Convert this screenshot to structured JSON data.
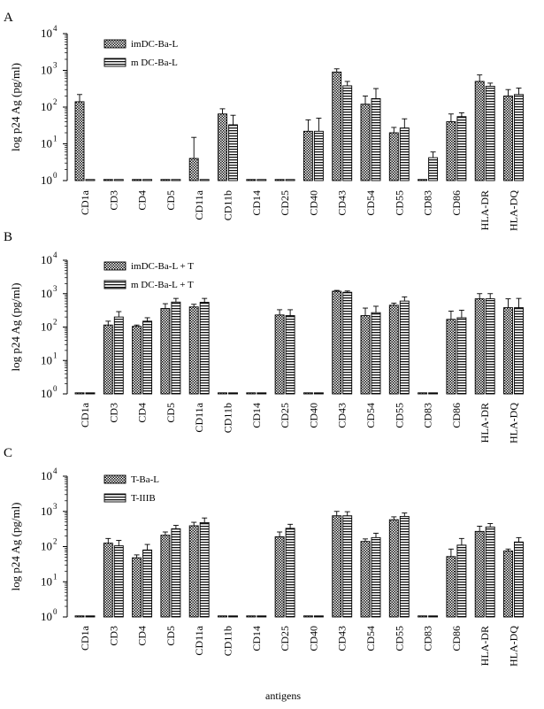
{
  "figure": {
    "xlabel": "antigens",
    "ylabel": "log p24 Ag (pg/ml)"
  },
  "chart_data": [
    {
      "type": "bar",
      "panel_label": "A",
      "yscale": "log",
      "ylim": [
        1,
        10000
      ],
      "ytick_labels": [
        "10",
        "10",
        "10",
        "10",
        "10"
      ],
      "ytick_exponents": [
        "0",
        "1",
        "2",
        "3",
        "4"
      ],
      "ylabel": "log p24 Ag (pg/ml)",
      "legend_position": "top-left",
      "categories": [
        "CD1a",
        "CD3",
        "CD4",
        "CD5",
        "CD11a",
        "CD11b",
        "CD14",
        "CD25",
        "CD40",
        "CD43",
        "CD54",
        "CD55",
        "CD83",
        "CD86",
        "HLA-DR",
        "HLA-DQ"
      ],
      "series": [
        {
          "name": "imDC-Ba-L",
          "pattern": "checker",
          "values": [
            140,
            1,
            1,
            1,
            4,
            65,
            1,
            1,
            22,
            900,
            120,
            20,
            1,
            40,
            500,
            200
          ],
          "errors": [
            220,
            1,
            1,
            1,
            15,
            90,
            1,
            1,
            45,
            1100,
            200,
            28,
            1,
            65,
            750,
            300
          ]
        },
        {
          "name": "m DC-Ba-L",
          "pattern": "stripes",
          "values": [
            1,
            1,
            1,
            1,
            1,
            33,
            1,
            1,
            22,
            380,
            170,
            27,
            4.2,
            55,
            370,
            220
          ],
          "errors": [
            1,
            1,
            1,
            1,
            1,
            60,
            1,
            1,
            50,
            500,
            320,
            48,
            6,
            70,
            450,
            330
          ]
        }
      ]
    },
    {
      "type": "bar",
      "panel_label": "B",
      "yscale": "log",
      "ylim": [
        1,
        10000
      ],
      "ytick_labels": [
        "10",
        "10",
        "10",
        "10",
        "10"
      ],
      "ytick_exponents": [
        "0",
        "1",
        "2",
        "3",
        "4"
      ],
      "ylabel": "log p24 Ag (pg/ml)",
      "legend_position": "top-left",
      "categories": [
        "CD1a",
        "CD3",
        "CD4",
        "CD5",
        "CD11a",
        "CD11b",
        "CD14",
        "CD25",
        "CD40",
        "CD43",
        "CD54",
        "CD55",
        "CD83",
        "CD86",
        "HLA-DR",
        "HLA-DQ"
      ],
      "series": [
        {
          "name": "imDC-Ba-L + T",
          "pattern": "checker",
          "values": [
            1,
            115,
            105,
            360,
            400,
            1,
            1,
            230,
            1,
            1180,
            220,
            450,
            1,
            170,
            700,
            380
          ],
          "errors": [
            1,
            150,
            115,
            500,
            480,
            1,
            1,
            330,
            1,
            1250,
            370,
            520,
            1,
            300,
            1000,
            700
          ]
        },
        {
          "name": "m DC-Ba-L + T",
          "pattern": "stripes",
          "values": [
            1,
            200,
            150,
            560,
            550,
            1,
            1,
            220,
            1,
            1100,
            270,
            600,
            1,
            190,
            700,
            380
          ],
          "errors": [
            1,
            290,
            190,
            720,
            720,
            1,
            1,
            330,
            1,
            1200,
            420,
            800,
            1,
            320,
            1000,
            720
          ]
        }
      ]
    },
    {
      "type": "bar",
      "panel_label": "C",
      "yscale": "log",
      "ylim": [
        1,
        10000
      ],
      "ytick_labels": [
        "10",
        "10",
        "10",
        "10",
        "10"
      ],
      "ytick_exponents": [
        "0",
        "1",
        "2",
        "3",
        "4"
      ],
      "ylabel": "log p24 Ag (pg/ml)",
      "xlabel": "antigens",
      "legend_position": "top-left",
      "categories": [
        "CD1a",
        "CD3",
        "CD4",
        "CD5",
        "CD11a",
        "CD11b",
        "CD14",
        "CD25",
        "CD40",
        "CD43",
        "CD54",
        "CD55",
        "CD83",
        "CD86",
        "HLA-DR",
        "HLA-DQ"
      ],
      "series": [
        {
          "name": "T-Ba-L",
          "pattern": "checker",
          "values": [
            1,
            125,
            48,
            210,
            390,
            1,
            1,
            190,
            1,
            750,
            140,
            580,
            1,
            52,
            270,
            75
          ],
          "errors": [
            1,
            170,
            58,
            260,
            490,
            1,
            1,
            260,
            1,
            1000,
            165,
            700,
            1,
            85,
            380,
            85
          ]
        },
        {
          "name": "T-IIIB",
          "pattern": "stripes",
          "values": [
            1,
            105,
            80,
            320,
            480,
            1,
            1,
            330,
            1,
            750,
            180,
            720,
            1,
            110,
            360,
            135
          ],
          "errors": [
            1,
            150,
            115,
            400,
            650,
            1,
            1,
            430,
            1,
            980,
            240,
            900,
            1,
            170,
            450,
            180
          ]
        }
      ]
    }
  ]
}
